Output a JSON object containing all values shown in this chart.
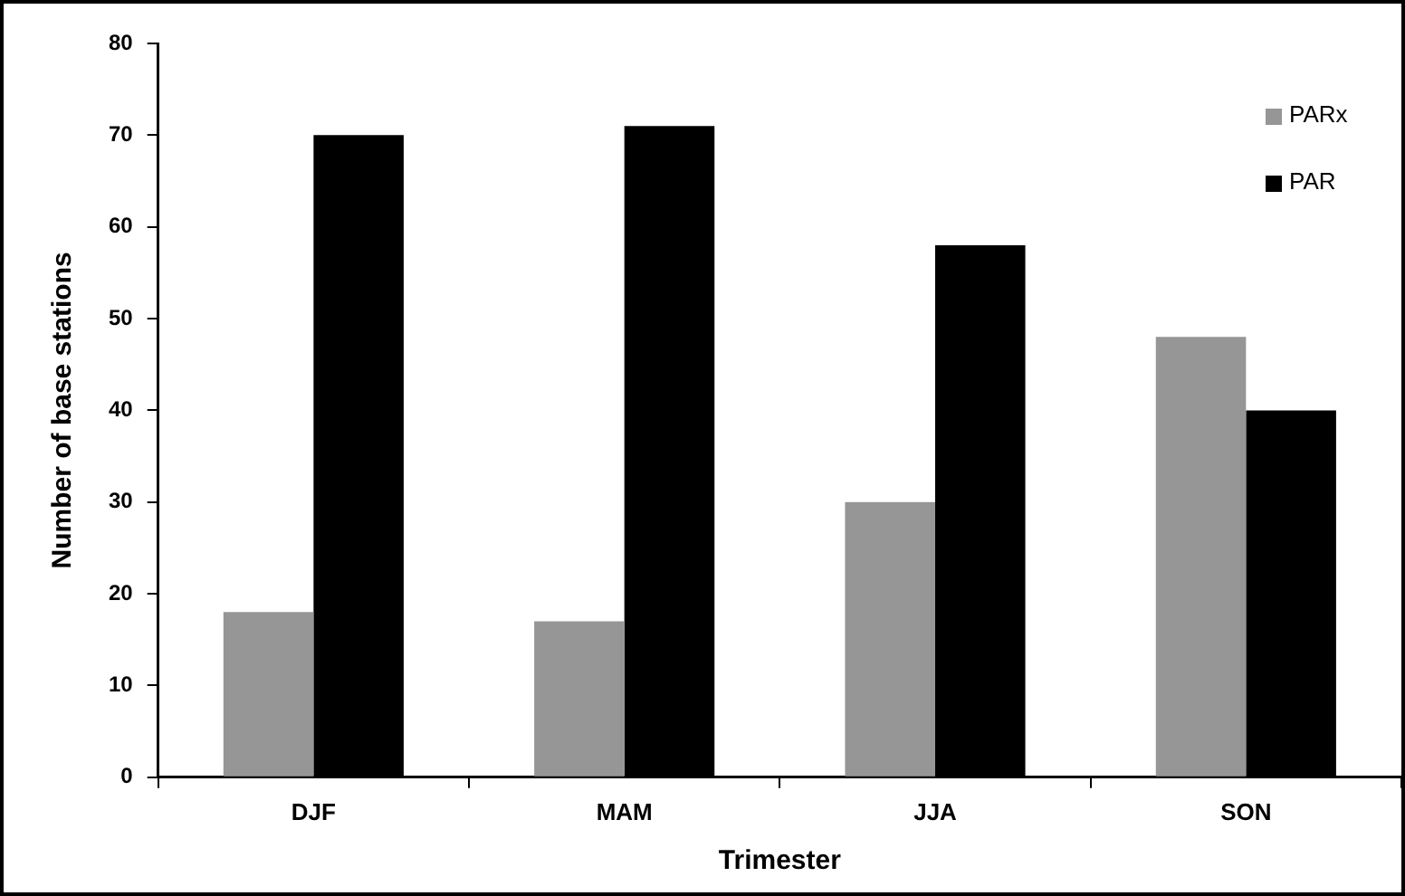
{
  "chart_data": {
    "type": "bar",
    "xlabel": "Trimester",
    "ylabel": "Number of base stations",
    "categories": [
      "DJF",
      "MAM",
      "JJA",
      "SON"
    ],
    "series": [
      {
        "name": "PARx",
        "color": "#969696",
        "values": [
          18,
          17,
          30,
          48
        ]
      },
      {
        "name": "PAR",
        "color": "#000000",
        "values": [
          70,
          71,
          58,
          40
        ]
      }
    ],
    "ylim": [
      0,
      80
    ],
    "yticks": [
      0,
      10,
      20,
      30,
      40,
      50,
      60,
      70,
      80
    ],
    "grid": false,
    "legend": "top right"
  }
}
